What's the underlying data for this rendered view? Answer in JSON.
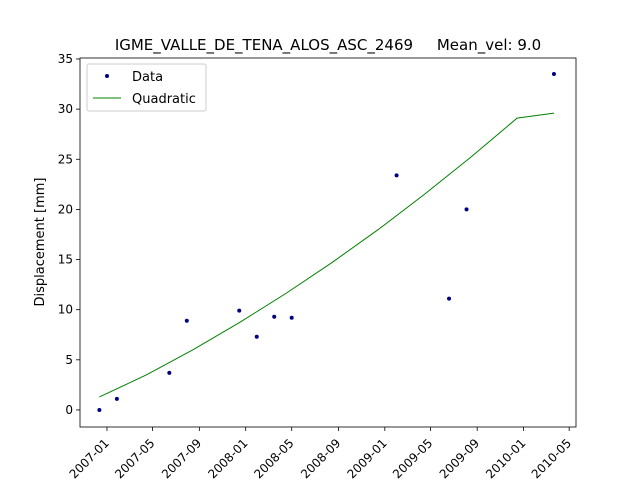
{
  "chart_data": {
    "type": "scatter",
    "title": "IGME_VALLE_DE_TENA_ALOS_ASC_2469     Mean_vel: 9.0",
    "xlabel": "",
    "ylabel": "Displacement [mm]",
    "x_scale": "date",
    "xlim": [
      "2006-10-22",
      "2010-05-19"
    ],
    "ylim": [
      -1.7,
      35.1
    ],
    "x_ticks": [
      "2007-01",
      "2007-05",
      "2007-09",
      "2008-01",
      "2008-05",
      "2008-09",
      "2009-01",
      "2009-05",
      "2009-09",
      "2010-01",
      "2010-05"
    ],
    "y_ticks": [
      0,
      5,
      10,
      15,
      20,
      25,
      30,
      35
    ],
    "grid": false,
    "legend_position": "top-left",
    "series": [
      {
        "name": "Data",
        "kind": "points",
        "color": "#000080",
        "points": [
          {
            "x": "2006-12-12",
            "y": 0.0
          },
          {
            "x": "2007-01-27",
            "y": 1.1
          },
          {
            "x": "2007-06-14",
            "y": 3.7
          },
          {
            "x": "2007-07-30",
            "y": 8.9
          },
          {
            "x": "2007-12-15",
            "y": 9.9
          },
          {
            "x": "2008-01-30",
            "y": 7.3
          },
          {
            "x": "2008-03-16",
            "y": 9.3
          },
          {
            "x": "2008-05-01",
            "y": 9.2
          },
          {
            "x": "2009-02-01",
            "y": 23.4
          },
          {
            "x": "2009-06-19",
            "y": 11.1
          },
          {
            "x": "2009-08-04",
            "y": 20.0
          },
          {
            "x": "2010-03-22",
            "y": 33.5
          }
        ]
      },
      {
        "name": "Quadratic",
        "kind": "line",
        "color": "#008000",
        "points": [
          {
            "x": "2006-12-12",
            "y": 1.3
          },
          {
            "x": "2007-04-15",
            "y": 3.5
          },
          {
            "x": "2007-08-15",
            "y": 6.0
          },
          {
            "x": "2007-12-15",
            "y": 8.7
          },
          {
            "x": "2008-04-15",
            "y": 11.6
          },
          {
            "x": "2008-08-15",
            "y": 14.7
          },
          {
            "x": "2008-12-15",
            "y": 18.0
          },
          {
            "x": "2009-04-15",
            "y": 21.5
          },
          {
            "x": "2009-08-15",
            "y": 25.2
          },
          {
            "x": "2009-12-15",
            "y": 29.1
          },
          {
            "x": "2010-03-22",
            "y": 29.6
          }
        ]
      }
    ]
  }
}
